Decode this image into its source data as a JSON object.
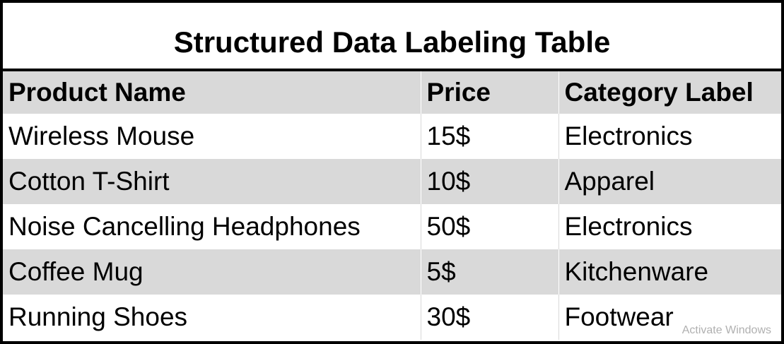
{
  "title": "Structured Data Labeling Table",
  "table": {
    "columns": [
      "Product Name",
      "Price",
      "Category Label"
    ],
    "rows": [
      [
        "Wireless Mouse",
        "15$",
        "Electronics"
      ],
      [
        "Cotton T-Shirt",
        "10$",
        "Apparel"
      ],
      [
        "Noise Cancelling Headphones",
        "50$",
        "Electronics"
      ],
      [
        "Coffee Mug",
        "5$",
        "Kitchenware"
      ],
      [
        "Running Shoes",
        "30$",
        "Footwear"
      ]
    ]
  },
  "watermark": "Activate Windows"
}
